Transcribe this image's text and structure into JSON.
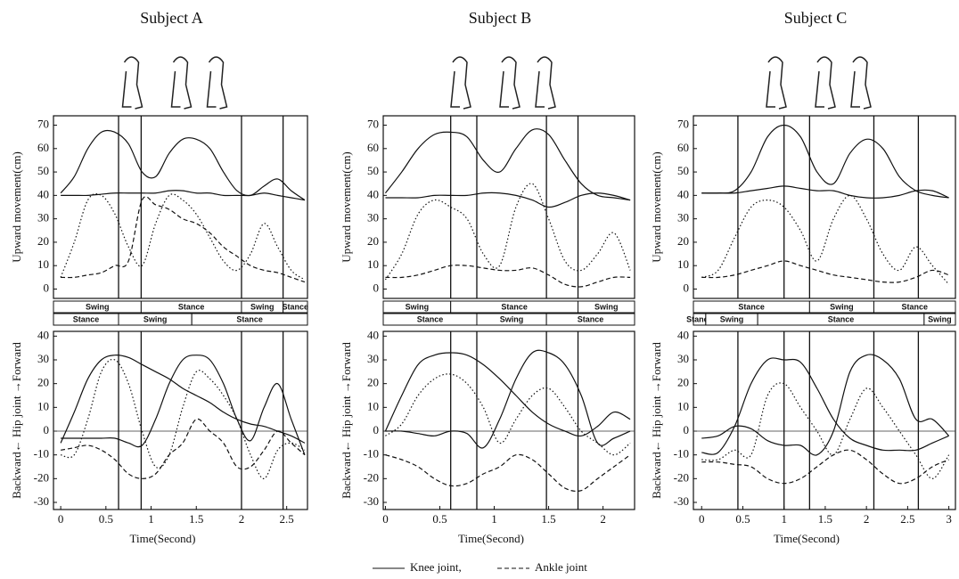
{
  "chart_data": [
    {
      "type": "line",
      "title": "Subject A",
      "y_label": "Upward movement(cm)",
      "x": [
        0,
        0.15,
        0.3,
        0.45,
        0.6,
        0.75,
        0.9,
        1.05,
        1.2,
        1.35,
        1.5,
        1.65,
        1.8,
        1.95,
        2.1,
        2.25,
        2.4,
        2.55,
        2.7
      ],
      "xlim": [
        -0.08,
        2.73
      ],
      "ylim": [
        -4,
        74
      ],
      "yticks": [
        0,
        10,
        20,
        30,
        40,
        50,
        60,
        70
      ],
      "events": [
        0.64,
        0.89,
        2.0,
        2.46
      ],
      "series": [
        {
          "style": "solid",
          "values": [
            41,
            48,
            60,
            67,
            67,
            62,
            50,
            48,
            58,
            64,
            64,
            60,
            50,
            42,
            40,
            44,
            47,
            42,
            38
          ]
        },
        {
          "style": "solid",
          "values": [
            40,
            40,
            40,
            40.5,
            41,
            41,
            41,
            41,
            42,
            42,
            41,
            41,
            40,
            40,
            40,
            41,
            40,
            39,
            38
          ]
        },
        {
          "style": "dotted",
          "values": [
            5,
            20,
            38,
            40,
            32,
            18,
            10,
            28,
            40,
            38,
            32,
            22,
            12,
            8,
            15,
            28,
            18,
            8,
            4
          ]
        },
        {
          "style": "dashed",
          "values": [
            5,
            5,
            6,
            7,
            10,
            12,
            38,
            36,
            34,
            30,
            28,
            24,
            18,
            14,
            10,
            8,
            7,
            5,
            3
          ]
        }
      ],
      "phases": [
        [
          {
            "label": "Swing",
            "start": -0.08,
            "end": 0.89
          },
          {
            "label": "Stance",
            "start": 0.89,
            "end": 2.0
          },
          {
            "label": "Swing",
            "start": 2.0,
            "end": 2.46
          },
          {
            "label": "Stance",
            "start": 2.46,
            "end": 2.73
          }
        ],
        [
          {
            "label": "Stance",
            "start": -0.08,
            "end": 0.64
          },
          {
            "label": "Swing",
            "start": 0.64,
            "end": 1.45
          },
          {
            "label": "Stance",
            "start": 1.45,
            "end": 2.73
          }
        ]
      ]
    },
    {
      "type": "line",
      "y_label": "Backward← Hip joint →Forward",
      "x_label": "Time(Second)",
      "x": [
        0,
        0.15,
        0.3,
        0.45,
        0.6,
        0.75,
        0.9,
        1.05,
        1.2,
        1.35,
        1.5,
        1.65,
        1.8,
        1.95,
        2.1,
        2.25,
        2.4,
        2.55,
        2.7
      ],
      "xlim": [
        -0.08,
        2.73
      ],
      "xticks": [
        0,
        0.5,
        1,
        1.5,
        2,
        2.5
      ],
      "ylim": [
        -33,
        42
      ],
      "yticks": [
        -30,
        -20,
        -10,
        0,
        10,
        20,
        30,
        40
      ],
      "zero_line": true,
      "events": [
        0.64,
        0.89,
        2.0,
        2.46
      ],
      "series": [
        {
          "style": "solid",
          "values": [
            -5,
            8,
            22,
            30,
            32,
            31,
            28,
            25,
            22,
            18,
            15,
            12,
            8,
            5,
            3,
            2,
            0,
            -2,
            -5
          ]
        },
        {
          "style": "solid",
          "values": [
            -3,
            -3,
            -3,
            -3,
            -3,
            -5,
            -6,
            5,
            20,
            30,
            32,
            30,
            20,
            5,
            -4,
            10,
            20,
            5,
            -10
          ]
        },
        {
          "style": "dotted",
          "values": [
            -10,
            -10,
            5,
            25,
            30,
            20,
            0,
            -15,
            -10,
            10,
            25,
            22,
            15,
            5,
            -10,
            -20,
            -8,
            -5,
            -8
          ]
        },
        {
          "style": "dashed",
          "values": [
            -8,
            -7,
            -6,
            -8,
            -12,
            -18,
            -20,
            -18,
            -10,
            -5,
            5,
            0,
            -5,
            -15,
            -15,
            -8,
            0,
            -5,
            -10
          ]
        }
      ]
    },
    {
      "type": "line",
      "title": "Subject B",
      "y_label": "Upward movement(cm)",
      "x": [
        0,
        0.15,
        0.3,
        0.45,
        0.6,
        0.75,
        0.9,
        1.05,
        1.2,
        1.35,
        1.5,
        1.65,
        1.8,
        1.95,
        2.1,
        2.25
      ],
      "xlim": [
        -0.02,
        2.29
      ],
      "ylim": [
        -4,
        74
      ],
      "yticks": [
        0,
        10,
        20,
        30,
        40,
        50,
        60,
        70
      ],
      "events": [
        0.6,
        0.84,
        1.48,
        1.77
      ],
      "series": [
        {
          "style": "solid",
          "values": [
            41,
            50,
            60,
            66,
            67,
            65,
            55,
            50,
            60,
            68,
            66,
            55,
            45,
            40,
            39,
            38
          ]
        },
        {
          "style": "solid",
          "values": [
            39,
            39,
            39,
            40,
            40,
            40,
            41,
            41,
            40,
            38,
            35,
            37,
            40,
            41,
            40,
            38
          ]
        },
        {
          "style": "dotted",
          "values": [
            4,
            15,
            32,
            38,
            35,
            30,
            15,
            10,
            35,
            45,
            30,
            12,
            8,
            15,
            24,
            8
          ]
        },
        {
          "style": "dashed",
          "values": [
            5,
            5,
            6,
            8,
            10,
            10,
            9,
            8,
            8,
            9,
            6,
            2,
            1,
            3,
            5,
            5
          ]
        }
      ],
      "phases": [
        [
          {
            "label": "Swing",
            "start": -0.02,
            "end": 0.6
          },
          {
            "label": "Stance",
            "start": 0.6,
            "end": 1.77
          },
          {
            "label": "Swing",
            "start": 1.77,
            "end": 2.29
          }
        ],
        [
          {
            "label": "Stance",
            "start": -0.02,
            "end": 0.84
          },
          {
            "label": "Swing",
            "start": 0.84,
            "end": 1.48
          },
          {
            "label": "Stance",
            "start": 1.48,
            "end": 2.29
          }
        ]
      ]
    },
    {
      "type": "line",
      "y_label": "Backward← Hip joint →Forward",
      "x_label": "Time(Second)",
      "x": [
        0,
        0.15,
        0.3,
        0.45,
        0.6,
        0.75,
        0.9,
        1.05,
        1.2,
        1.35,
        1.5,
        1.65,
        1.8,
        1.95,
        2.1,
        2.25
      ],
      "xlim": [
        -0.02,
        2.29
      ],
      "xticks": [
        0,
        0.5,
        1,
        1.5,
        2
      ],
      "ylim": [
        -33,
        42
      ],
      "yticks": [
        -30,
        -20,
        -10,
        0,
        10,
        20,
        30,
        40
      ],
      "zero_line": true,
      "events": [
        0.6,
        0.84,
        1.48,
        1.77
      ],
      "series": [
        {
          "style": "solid",
          "values": [
            0,
            15,
            28,
            32,
            33,
            32,
            28,
            22,
            15,
            8,
            3,
            0,
            -2,
            2,
            8,
            5
          ]
        },
        {
          "style": "solid",
          "values": [
            0,
            0,
            -1,
            -2,
            0,
            -1,
            -7,
            5,
            22,
            33,
            33,
            28,
            15,
            -5,
            -3,
            0
          ]
        },
        {
          "style": "dotted",
          "values": [
            -2,
            3,
            15,
            22,
            24,
            20,
            10,
            -5,
            5,
            15,
            18,
            10,
            0,
            -5,
            -10,
            -5
          ]
        },
        {
          "style": "dashed",
          "values": [
            -10,
            -12,
            -15,
            -20,
            -23,
            -22,
            -18,
            -15,
            -10,
            -12,
            -18,
            -24,
            -25,
            -20,
            -15,
            -10
          ]
        }
      ]
    },
    {
      "type": "line",
      "title": "Subject C",
      "y_label": "Upward movement(cm)",
      "x": [
        0,
        0.2,
        0.4,
        0.6,
        0.8,
        1,
        1.2,
        1.4,
        1.6,
        1.8,
        2,
        2.2,
        2.4,
        2.6,
        2.8,
        3
      ],
      "xlim": [
        -0.1,
        3.08
      ],
      "ylim": [
        -4,
        74
      ],
      "yticks": [
        0,
        10,
        20,
        30,
        40,
        50,
        60,
        70
      ],
      "events": [
        0.44,
        1.0,
        1.31,
        2.09,
        2.63
      ],
      "series": [
        {
          "style": "solid",
          "values": [
            41,
            41,
            42,
            50,
            65,
            70,
            65,
            50,
            45,
            58,
            64,
            60,
            48,
            42,
            40,
            39
          ]
        },
        {
          "style": "solid",
          "values": [
            41,
            41,
            41,
            42,
            43,
            44,
            43,
            42,
            42,
            40,
            39,
            39,
            40,
            42,
            42,
            39
          ]
        },
        {
          "style": "dotted",
          "values": [
            5,
            8,
            22,
            35,
            38,
            35,
            25,
            12,
            30,
            40,
            30,
            15,
            8,
            18,
            10,
            2
          ]
        },
        {
          "style": "dashed",
          "values": [
            5,
            5,
            6,
            8,
            10,
            12,
            10,
            8,
            6,
            5,
            4,
            3,
            3,
            5,
            8,
            6
          ]
        }
      ],
      "phases": [
        [
          {
            "label": "Stance",
            "start": -0.1,
            "end": 1.31
          },
          {
            "label": "Swing",
            "start": 1.31,
            "end": 2.09
          },
          {
            "label": "Stance",
            "start": 2.09,
            "end": 3.08
          }
        ],
        [
          {
            "label": "Stance",
            "start": -0.1,
            "end": 0.05
          },
          {
            "label": "Swing",
            "start": 0.05,
            "end": 0.68
          },
          {
            "label": "Stance",
            "start": 0.68,
            "end": 2.7
          },
          {
            "label": "Swing",
            "start": 2.7,
            "end": 3.08
          }
        ]
      ]
    },
    {
      "type": "line",
      "y_label": "Backward← Hip joint →Forward",
      "x_label": "Time(Second)",
      "x": [
        0,
        0.2,
        0.4,
        0.6,
        0.8,
        1,
        1.2,
        1.4,
        1.6,
        1.8,
        2,
        2.2,
        2.4,
        2.6,
        2.8,
        3
      ],
      "xlim": [
        -0.1,
        3.08
      ],
      "xticks": [
        0,
        0.5,
        1,
        1.5,
        2,
        2.5,
        3
      ],
      "ylim": [
        -33,
        42
      ],
      "yticks": [
        -30,
        -20,
        -10,
        0,
        10,
        20,
        30,
        40
      ],
      "zero_line": true,
      "events": [
        0.44,
        1.0,
        1.31,
        2.09,
        2.63
      ],
      "series": [
        {
          "style": "solid",
          "values": [
            -9,
            -9,
            2,
            20,
            30,
            30,
            29,
            18,
            5,
            -3,
            -6,
            -8,
            -8,
            -8,
            -5,
            -2
          ]
        },
        {
          "style": "solid",
          "values": [
            -3,
            -2,
            2,
            1,
            -4,
            -6,
            -6,
            -10,
            0,
            25,
            32,
            30,
            22,
            5,
            5,
            -2
          ]
        },
        {
          "style": "dotted",
          "values": [
            -12,
            -12,
            -8,
            -10,
            15,
            20,
            10,
            0,
            -10,
            5,
            18,
            10,
            0,
            -10,
            -20,
            -10
          ]
        },
        {
          "style": "dashed",
          "values": [
            -13,
            -13,
            -14,
            -15,
            -20,
            -22,
            -20,
            -15,
            -10,
            -8,
            -12,
            -18,
            -22,
            -20,
            -15,
            -12
          ]
        }
      ]
    }
  ],
  "legend": [
    {
      "label": "Knee joint,",
      "style": "solid"
    },
    {
      "label": "Ankle joint",
      "style": "dashed"
    }
  ]
}
